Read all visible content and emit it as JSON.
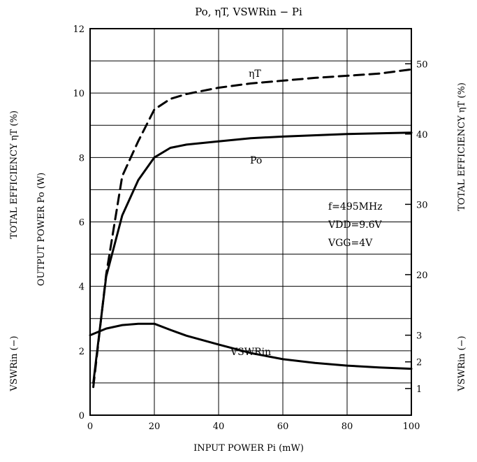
{
  "chart_data": {
    "type": "line",
    "title": "Po, ηT, VSWRin − Pi",
    "xlabel": "INPUT POWER  Pi  (mW)",
    "xlim": [
      0,
      100
    ],
    "x_ticks": [
      "0",
      "20",
      "40",
      "60",
      "80",
      "100"
    ],
    "left_axis": {
      "ylim": [
        0,
        12
      ],
      "y_ticks": [
        "0",
        "2",
        "4",
        "6",
        "8",
        "10",
        "12"
      ],
      "labels": [
        "TOTAL EFFICIENCY  ηT  (%)",
        "OUTPUT POWER  Po  (W)",
        "VSWRin (−)"
      ]
    },
    "right_axis": {
      "eff_ticks": [
        "20",
        "30",
        "40",
        "50"
      ],
      "vswr_ticks": [
        "1",
        "2",
        "3"
      ],
      "labels": [
        "TOTAL EFFICIENCY  ηT  (%)",
        "VSWRin (−)"
      ]
    },
    "grid": true,
    "conditions": [
      "f=495MHz",
      "VDD=9.6V",
      "VGG=4V"
    ],
    "series": [
      {
        "name": "ηT",
        "axis": "efficiency (%)",
        "style": "dashed",
        "points": [
          [
            1,
            4
          ],
          [
            5,
            20
          ],
          [
            10,
            34
          ],
          [
            15,
            39
          ],
          [
            20,
            43.5
          ],
          [
            25,
            45
          ],
          [
            30,
            45.7
          ],
          [
            40,
            46.6
          ],
          [
            50,
            47.2
          ],
          [
            60,
            47.6
          ],
          [
            70,
            48.0
          ],
          [
            80,
            48.3
          ],
          [
            90,
            48.6
          ],
          [
            100,
            49.2
          ]
        ]
      },
      {
        "name": "Po",
        "axis": "output power (W)",
        "style": "solid",
        "points": [
          [
            1,
            1.0
          ],
          [
            5,
            4.3
          ],
          [
            10,
            6.2
          ],
          [
            15,
            7.3
          ],
          [
            20,
            8.0
          ],
          [
            25,
            8.3
          ],
          [
            30,
            8.4
          ],
          [
            40,
            8.5
          ],
          [
            50,
            8.6
          ],
          [
            60,
            8.65
          ],
          [
            80,
            8.73
          ],
          [
            100,
            8.77
          ]
        ]
      },
      {
        "name": "VSWRin",
        "axis": "VSWRin (−)",
        "style": "solid",
        "points": [
          [
            0,
            3.0
          ],
          [
            5,
            3.25
          ],
          [
            10,
            3.38
          ],
          [
            15,
            3.43
          ],
          [
            20,
            3.43
          ],
          [
            25,
            3.2
          ],
          [
            30,
            2.98
          ],
          [
            40,
            2.65
          ],
          [
            50,
            2.33
          ],
          [
            60,
            2.1
          ],
          [
            70,
            1.96
          ],
          [
            80,
            1.86
          ],
          [
            90,
            1.79
          ],
          [
            100,
            1.74
          ]
        ]
      }
    ]
  }
}
